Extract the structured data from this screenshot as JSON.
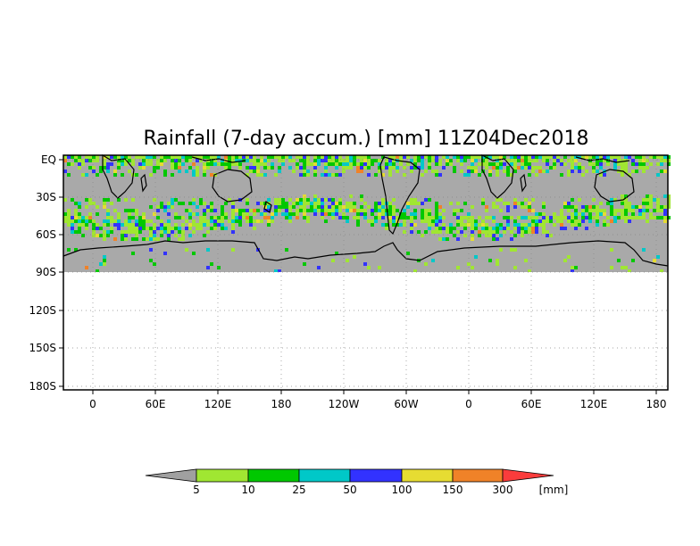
{
  "title": "Rainfall (7-day accum.) [mm] 11Z04Dec2018",
  "y_ticks": [
    "EQ",
    "30S",
    "60S",
    "90S",
    "120S",
    "150S",
    "180S"
  ],
  "x_ticks": [
    "0",
    "60E",
    "120E",
    "180",
    "120W",
    "60W",
    "0",
    "60E",
    "120E",
    "180"
  ],
  "colorbar": {
    "labels": [
      "5",
      "10",
      "25",
      "50",
      "100",
      "150",
      "300"
    ],
    "unit": "[mm]",
    "colors": {
      "under": "#a0a0a0",
      "bins": [
        "#a0e632",
        "#00c800",
        "#00c8c8",
        "#3232ff",
        "#e6dc32",
        "#f08228",
        "#fa3c3c"
      ]
    }
  },
  "colors": {
    "ocean_dry": "#a9a9a9",
    "coastline": "#000000",
    "frame": "#000000",
    "grid": "#888888"
  }
}
